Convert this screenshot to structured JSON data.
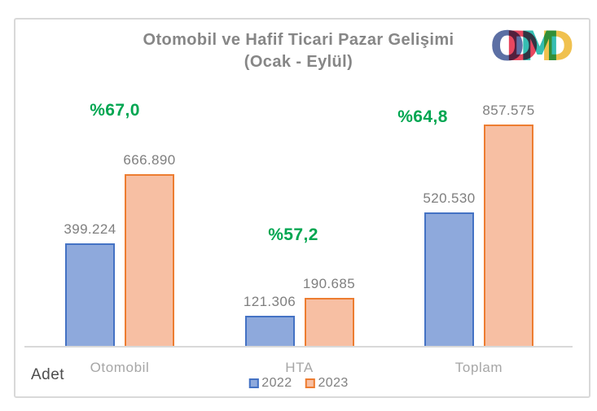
{
  "header": {
    "title_line1": "Otomobil ve Hafif Ticari Pazar Gelişimi",
    "title_line2": "(Ocak - Eylül)",
    "logo": {
      "name": "ODMD",
      "letters": [
        {
          "char": "O",
          "color": "#5c6fa4"
        },
        {
          "char": "D",
          "color": "#e8475f"
        },
        {
          "char": "M",
          "color": "#35bdb2"
        },
        {
          "char": "D",
          "color": "#f0c14f"
        }
      ]
    }
  },
  "chart_data": {
    "type": "bar",
    "title": "Otomobil ve Hafif Ticari Pazar Gelişimi (Ocak - Eylül)",
    "categories": [
      "Otomobil",
      "HTA",
      "Toplam"
    ],
    "series": [
      {
        "name": "2022",
        "values": [
          399224,
          121306,
          520530
        ],
        "labels": [
          "399.224",
          "121.306",
          "520.530"
        ],
        "fill": "#8ea9dc",
        "border": "#4472c4"
      },
      {
        "name": "2023",
        "values": [
          666890,
          190685,
          857575
        ],
        "labels": [
          "666.890",
          "190.685",
          "857.575"
        ],
        "fill": "#f7bfa3",
        "border": "#ed7d31"
      }
    ],
    "growth_labels": [
      "%67,0",
      "%57,2",
      "%64,8"
    ],
    "growth_color": "#00a651",
    "axis_unit_label": "Adet",
    "xlabel": "",
    "ylabel": "Adet",
    "ylim": [
      0,
      880000
    ],
    "grid": false,
    "legend_position": "bottom"
  },
  "legend": {
    "items": [
      {
        "label": "2022",
        "fill": "#8ea9dc",
        "border": "#4472c4"
      },
      {
        "label": "2023",
        "fill": "#f7bfa3",
        "border": "#ed7d31"
      }
    ]
  }
}
